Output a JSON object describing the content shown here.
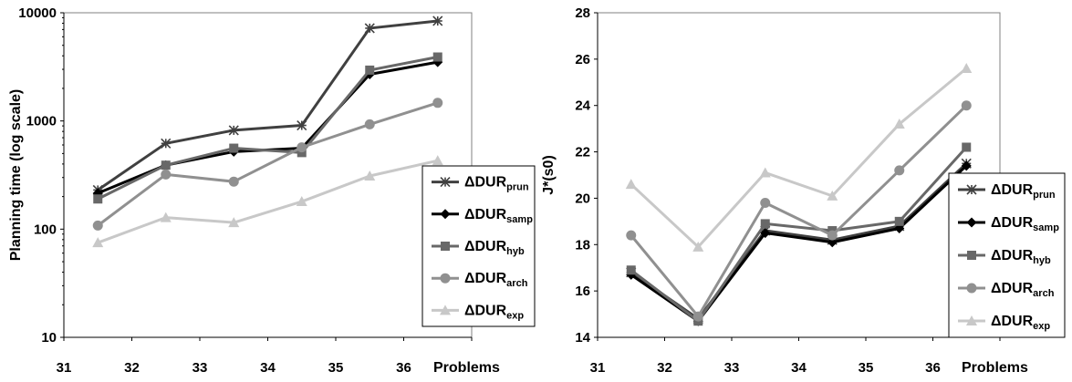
{
  "chart_data": [
    {
      "type": "line",
      "title": "",
      "xlabel": "Problems",
      "ylabel": "Planning time (log scale)",
      "yscale": "log",
      "ylim": [
        10,
        10000
      ],
      "yticks": [
        "10",
        "100",
        "1000",
        "10000"
      ],
      "x": [
        "31",
        "32",
        "33",
        "34",
        "35",
        "36"
      ],
      "grid": false,
      "legend_position": "right",
      "series": [
        {
          "name": "ΔDUR",
          "sub": "prun",
          "marker": "star",
          "color": "#404040",
          "values": [
            230,
            620,
            820,
            910,
            7200,
            8400
          ]
        },
        {
          "name": "ΔDUR",
          "sub": "samp",
          "marker": "diamond",
          "color": "#000000",
          "values": [
            215,
            390,
            520,
            560,
            2700,
            3500
          ]
        },
        {
          "name": "ΔDUR",
          "sub": "hyb",
          "marker": "square",
          "color": "#686868",
          "values": [
            190,
            390,
            560,
            510,
            2950,
            3900
          ]
        },
        {
          "name": "ΔDUR",
          "sub": "arch",
          "marker": "circle",
          "color": "#909090",
          "values": [
            108,
            320,
            275,
            570,
            930,
            1470
          ]
        },
        {
          "name": "ΔDUR",
          "sub": "exp",
          "marker": "triangle",
          "color": "#c8c8c8",
          "values": [
            75,
            128,
            115,
            180,
            310,
            430
          ]
        }
      ]
    },
    {
      "type": "line",
      "title": "",
      "xlabel": "Problems",
      "ylabel": "J*(s0)",
      "ylim": [
        14,
        28
      ],
      "yticks": [
        "14",
        "16",
        "18",
        "20",
        "22",
        "24",
        "26",
        "28"
      ],
      "x": [
        "31",
        "32",
        "33",
        "34",
        "35",
        "36"
      ],
      "grid": false,
      "legend_position": "right",
      "series": [
        {
          "name": "ΔDUR",
          "sub": "prun",
          "marker": "star",
          "color": "#404040",
          "values": [
            16.8,
            14.8,
            18.6,
            18.2,
            18.8,
            21.5
          ]
        },
        {
          "name": "ΔDUR",
          "sub": "samp",
          "marker": "diamond",
          "color": "#000000",
          "values": [
            16.7,
            14.7,
            18.5,
            18.1,
            18.7,
            21.4
          ]
        },
        {
          "name": "ΔDUR",
          "sub": "hyb",
          "marker": "square",
          "color": "#686868",
          "values": [
            16.9,
            14.7,
            18.9,
            18.6,
            19.0,
            22.2
          ]
        },
        {
          "name": "ΔDUR",
          "sub": "arch",
          "marker": "circle",
          "color": "#909090",
          "values": [
            18.4,
            14.9,
            19.8,
            18.4,
            21.2,
            24.0
          ]
        },
        {
          "name": "ΔDUR",
          "sub": "exp",
          "marker": "triangle",
          "color": "#c8c8c8",
          "values": [
            20.6,
            17.9,
            21.1,
            20.1,
            23.2,
            25.6
          ]
        }
      ]
    }
  ]
}
